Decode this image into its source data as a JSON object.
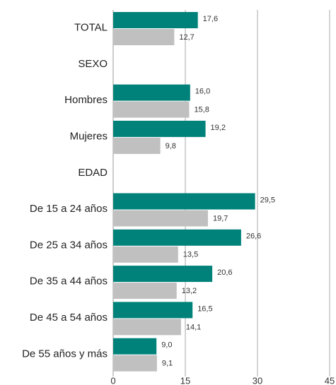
{
  "chart_data": {
    "type": "hbar",
    "categories": [
      "TOTAL",
      "SEXO",
      "Hombres",
      "Mujeres",
      "EDAD",
      "De 15 a 24 años",
      "De 25 a 34 años",
      "De 35 a 44 años",
      "De 45 a 54 años",
      "De 55 años y más"
    ],
    "series": [
      {
        "color": "#00827a",
        "values": [
          17.6,
          null,
          16.0,
          19.2,
          null,
          29.5,
          26.6,
          20.6,
          16.5,
          9.0
        ],
        "value_labels": [
          "17,6",
          null,
          "16,0",
          "19,2",
          null,
          "29,5",
          "26,6",
          "20,6",
          "16,5",
          "9,0"
        ]
      },
      {
        "color": "#c0c0c0",
        "values": [
          12.7,
          null,
          15.8,
          9.8,
          null,
          19.7,
          13.5,
          13.2,
          14.1,
          9.1
        ],
        "value_labels": [
          "12,7",
          null,
          "15,8",
          "9,8",
          null,
          "19,7",
          "13,5",
          "13,2",
          "14,1",
          "9,1"
        ]
      }
    ],
    "xlim": [
      0,
      45
    ],
    "xticks": [
      0,
      15,
      30,
      45
    ],
    "grid": true
  }
}
